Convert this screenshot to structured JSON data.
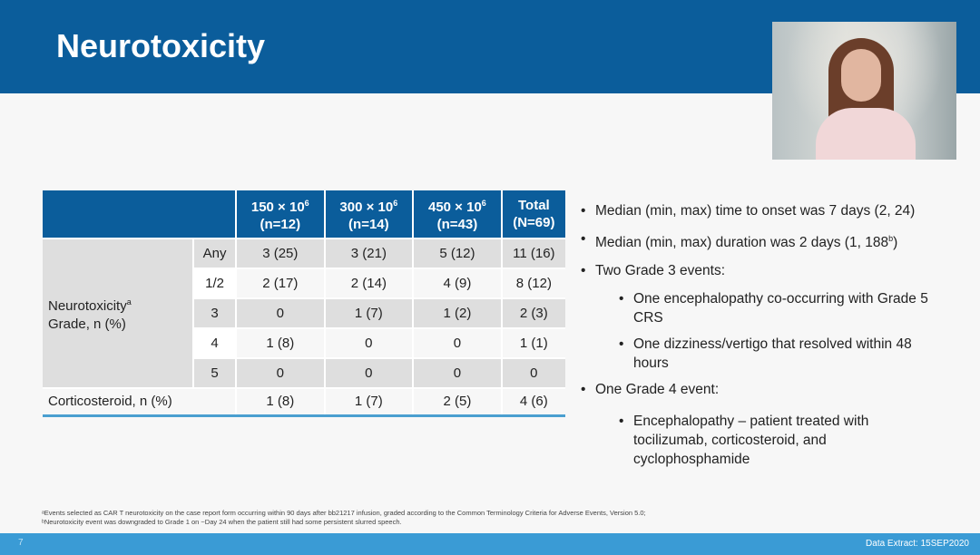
{
  "title": "Neurotoxicity",
  "table": {
    "headers": [
      [
        "150 × 10",
        "6",
        "(n=12)"
      ],
      [
        "300 × 10",
        "6",
        "(n=14)"
      ],
      [
        "450 × 10",
        "6",
        "(n=43)"
      ],
      [
        "Total",
        "",
        "(N=69)"
      ]
    ],
    "group_label": "Neurotoxicity",
    "group_sup": "a",
    "group_label2": "Grade, n (%)",
    "rows": [
      {
        "grade": "Any",
        "values": [
          "3 (25)",
          "3 (21)",
          "5 (12)",
          "11 (16)"
        ]
      },
      {
        "grade": "1/2",
        "values": [
          "2 (17)",
          "2 (14)",
          "4 (9)",
          "8 (12)"
        ]
      },
      {
        "grade": "3",
        "values": [
          "0",
          "1 (7)",
          "1 (2)",
          "2 (3)"
        ]
      },
      {
        "grade": "4",
        "values": [
          "1 (8)",
          "0",
          "0",
          "1 (1)"
        ]
      },
      {
        "grade": "5",
        "values": [
          "0",
          "0",
          "0",
          "0"
        ]
      }
    ],
    "cortico": {
      "label": "Corticosteroid, n (%)",
      "values": [
        "1 (8)",
        "1 (7)",
        "2 (5)",
        "4 (6)"
      ]
    }
  },
  "bullets": {
    "b1": "Median (min, max) time to onset was 7 days (2, 24)",
    "b2": "Median (min, max) duration was 2 days (1, 188",
    "b2sup": "b",
    "b2end": ")",
    "b3": "Two Grade 3 events:",
    "b3a": "One encephalopathy co-occurring with Grade 5 CRS",
    "b3b": "One dizziness/vertigo that resolved within 48 hours",
    "b4": "One Grade 4 event:",
    "b4a": "Encephalopathy – patient treated with tocilizumab, corticosteroid, and cyclophosphamide"
  },
  "footnotes": {
    "a": "ᵃEvents selected as CAR T neurotoxicity on the case report form occurring within 90 days after bb21217 infusion, graded according to the Common Terminology Criteria for Adverse Events, Version 5.0;",
    "b": "ᵇNeurotoxicity event was downgraded to Grade 1 on ~Day 24 when the patient still had some persistent slurred speech."
  },
  "footer": {
    "page": "7",
    "extract": "Data Extract: 15SEP2020"
  }
}
